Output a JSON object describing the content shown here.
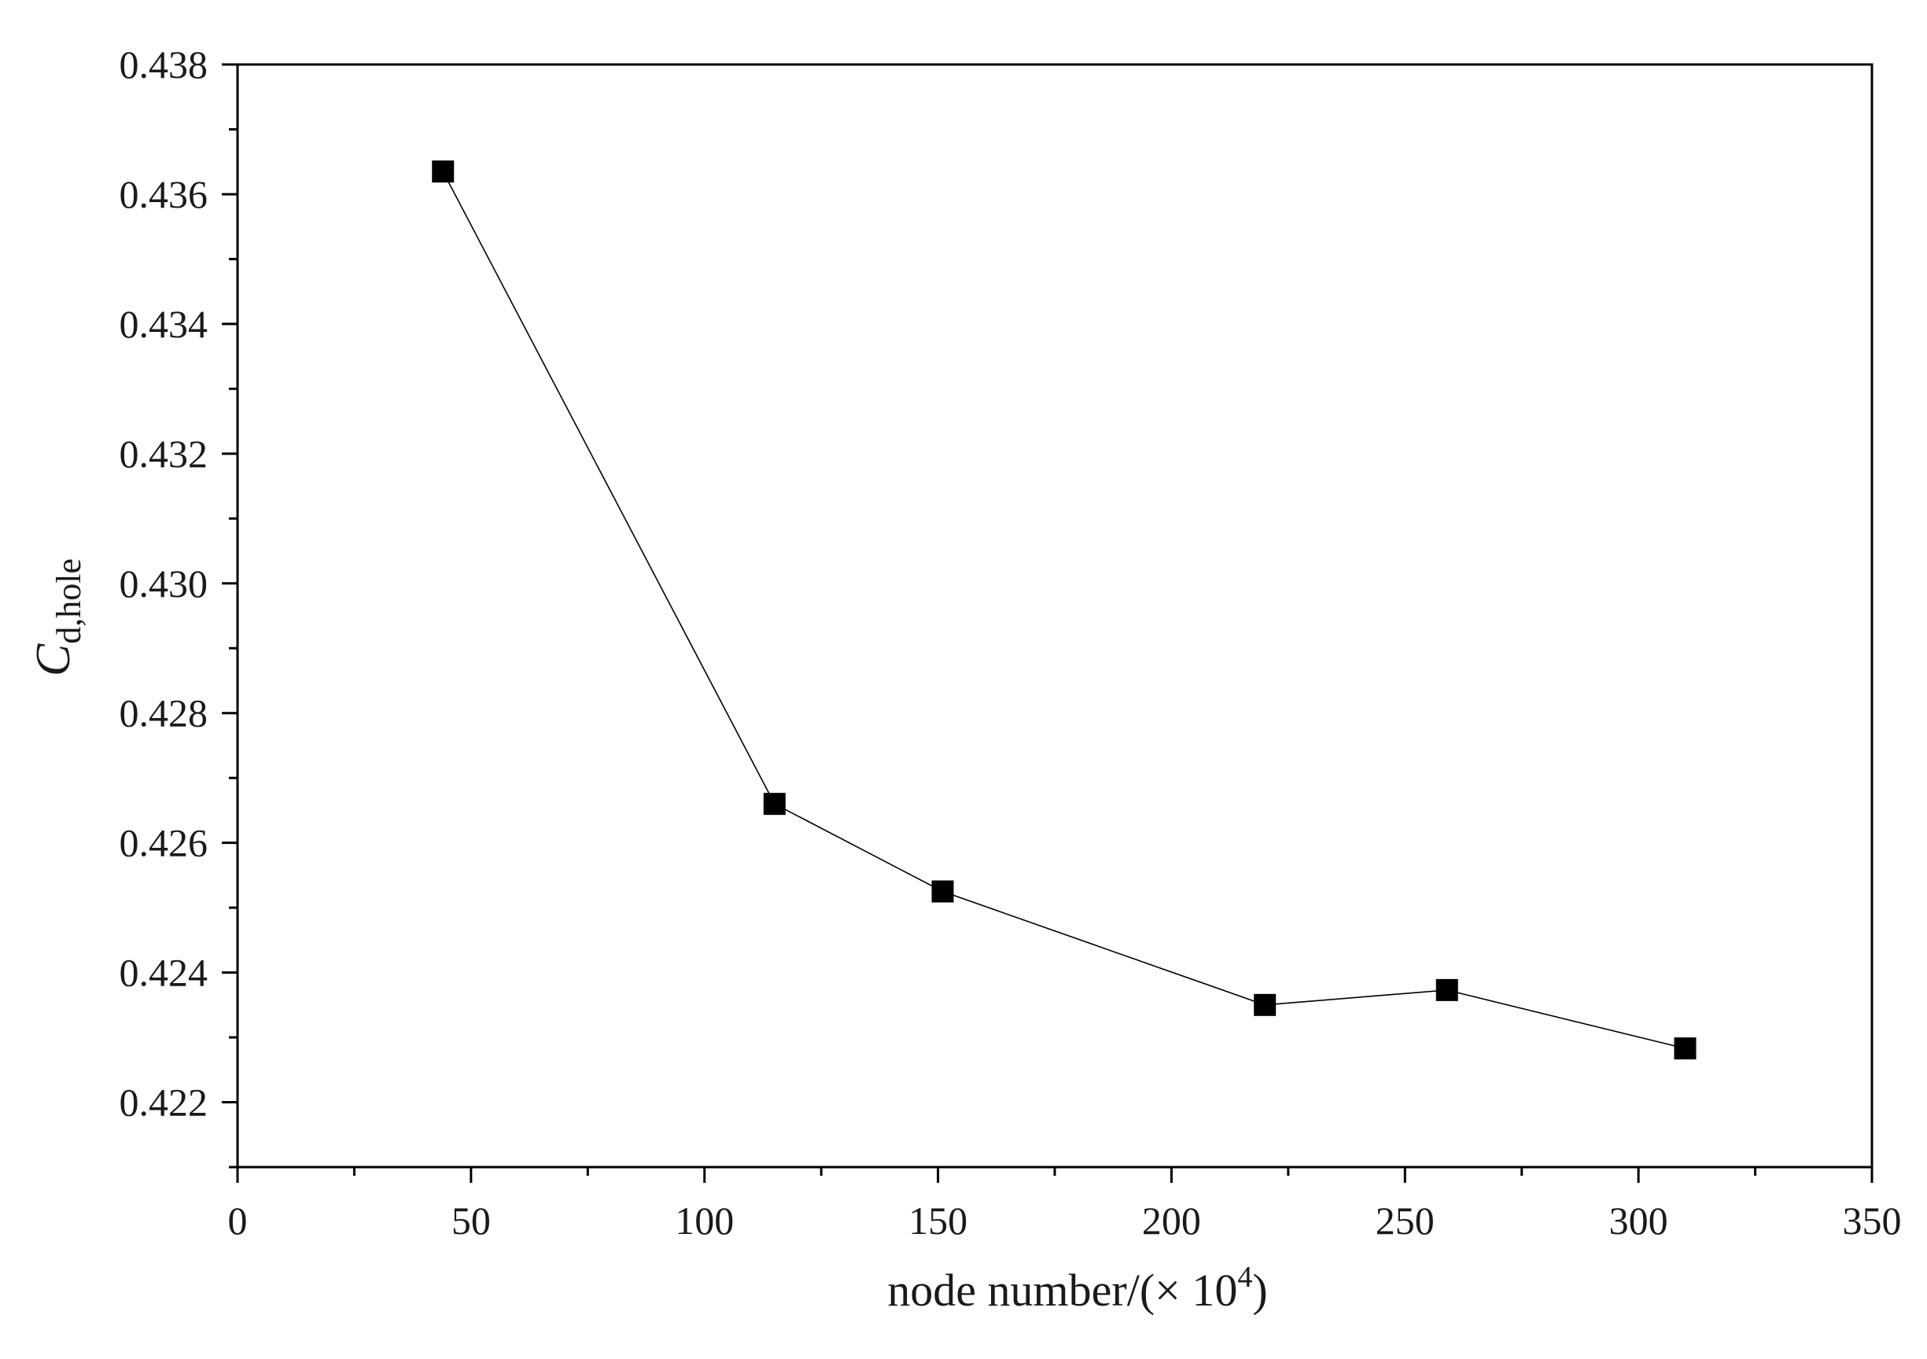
{
  "chart_data": {
    "type": "line",
    "title": "",
    "xlabel": "node number/(× 10",
    "xlabel_superscript": "4",
    "xlabel_suffix": ")",
    "ylabel_main": "C",
    "ylabel_subscript": "d,hole",
    "xlim": [
      0,
      350
    ],
    "ylim": [
      0.421,
      0.438
    ],
    "x_ticks": [
      0,
      50,
      100,
      150,
      200,
      250,
      300,
      350
    ],
    "x_tick_labels": [
      "0",
      "50",
      "100",
      "150",
      "200",
      "250",
      "300",
      "350"
    ],
    "y_ticks": [
      0.422,
      0.424,
      0.426,
      0.428,
      0.43,
      0.432,
      0.434,
      0.436,
      0.438
    ],
    "y_tick_labels": [
      "0.422",
      "0.424",
      "0.426",
      "0.428",
      "0.430",
      "0.432",
      "0.434",
      "0.436",
      "0.438"
    ],
    "grid": false,
    "legend": "none",
    "series": [
      {
        "marker": "filled-square",
        "color": "#000000",
        "x": [
          44,
          115,
          151,
          220,
          259,
          310
        ],
        "y": [
          0.43635,
          0.4266,
          0.42525,
          0.4235,
          0.42373,
          0.42283
        ]
      }
    ]
  }
}
